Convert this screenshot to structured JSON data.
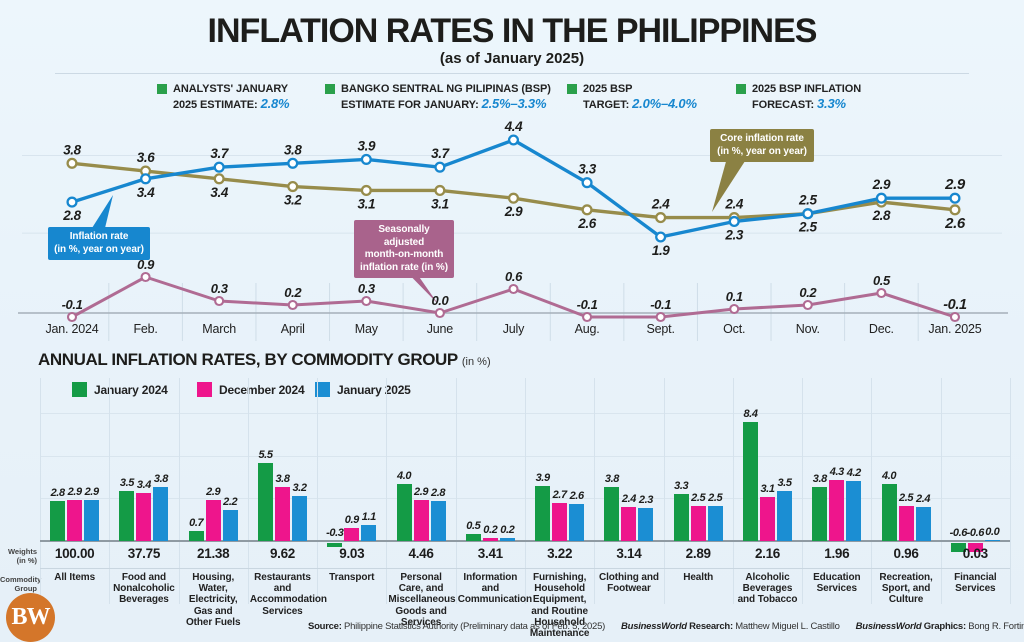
{
  "header": {
    "title": "INFLATION RATES IN THE PHILIPPINES",
    "subtitle": "(as of January 2025)"
  },
  "colors": {
    "accent_blue": "#1787cf",
    "olive": "#978c4b",
    "mauve": "#b06b93",
    "legend_green": "#2ba04b",
    "bar_green": "#149b46",
    "bar_pink": "#ee158c",
    "bar_blue": "#1b8ed3",
    "logo_orange": "#d4762a"
  },
  "estimates": [
    {
      "line1": "ANALYSTS' JANUARY",
      "line2": "2025 ESTIMATE:",
      "value": "2.8%"
    },
    {
      "line1": "BANGKO SENTRAL NG PILIPINAS (BSP)",
      "line2": "ESTIMATE FOR JANUARY:",
      "value": "2.5%–3.3%"
    },
    {
      "line1": "2025 BSP",
      "line2": "TARGET:",
      "value": "2.0%–4.0%"
    },
    {
      "line1": "2025 BSP INFLATION",
      "line2": "FORECAST:",
      "value": "3.3%"
    }
  ],
  "callouts": [
    {
      "lines": [
        "Inflation rate",
        "(in %, year on year)"
      ],
      "color": "#1787cf"
    },
    {
      "lines": [
        "Seasonally adjusted",
        "month-on-month",
        "inflation rate (in %)"
      ],
      "color": "#a9638c"
    },
    {
      "lines": [
        "Core inflation rate",
        "(in %, year on year)"
      ],
      "color": "#8b8143"
    }
  ],
  "chart_data": [
    {
      "type": "line",
      "categories": [
        "Jan. 2024",
        "Feb.",
        "March",
        "April",
        "May",
        "June",
        "July",
        "Aug.",
        "Sept.",
        "Oct.",
        "Nov.",
        "Dec.",
        "Jan. 2025"
      ],
      "ylim": [
        1.5,
        4.8
      ],
      "grid_values": [
        2.0,
        4.0
      ],
      "series": [
        {
          "name": "Inflation rate (in %, year on year)",
          "color": "#1787cf",
          "values": [
            2.8,
            3.4,
            3.7,
            3.8,
            3.9,
            3.7,
            4.4,
            3.3,
            1.9,
            2.3,
            2.5,
            2.9,
            2.9
          ],
          "label_pos": [
            "below",
            "below",
            "above",
            "above",
            "above",
            "above",
            "above",
            "above",
            "below",
            "below",
            "below",
            "above",
            "above"
          ]
        },
        {
          "name": "Core inflation rate (in %, year on year)",
          "color": "#978c4b",
          "values": [
            3.8,
            3.6,
            3.4,
            3.2,
            3.1,
            3.1,
            2.9,
            2.6,
            2.4,
            2.4,
            2.5,
            2.8,
            2.6
          ],
          "label_pos": [
            "above",
            "above",
            "below",
            "below",
            "below",
            "below",
            "below",
            "below",
            "above",
            "above",
            "above",
            "below",
            "below"
          ]
        }
      ]
    },
    {
      "type": "line",
      "categories": [
        "Jan. 2024",
        "Feb.",
        "March",
        "April",
        "May",
        "June",
        "July",
        "Aug.",
        "Sept.",
        "Oct.",
        "Nov.",
        "Dec.",
        "Jan. 2025"
      ],
      "ylim": [
        -0.4,
        1.1
      ],
      "zero_line": true,
      "series": [
        {
          "name": "Seasonally adjusted month-on-month inflation rate (in %)",
          "color": "#b06b93",
          "values": [
            -0.1,
            0.9,
            0.3,
            0.2,
            0.3,
            0.0,
            0.6,
            -0.1,
            -0.1,
            0.1,
            0.2,
            0.5,
            -0.1
          ]
        }
      ]
    },
    {
      "type": "bar",
      "title": "ANNUAL INFLATION RATES, BY COMMODITY GROUP",
      "title_suffix": "(in %)",
      "grid_values": [
        3,
        6,
        9
      ],
      "series": [
        {
          "name": "January 2024",
          "color": "#149b46"
        },
        {
          "name": "December 2024",
          "color": "#ee158c"
        },
        {
          "name": "January 2025",
          "color": "#1b8ed3"
        }
      ],
      "groups": [
        {
          "name": "All Items",
          "weight": "100.00",
          "values": [
            2.8,
            2.9,
            2.9
          ]
        },
        {
          "name": "Food and Nonalcoholic Beverages",
          "weight": "37.75",
          "values": [
            3.5,
            3.4,
            3.8
          ]
        },
        {
          "name": "Housing, Water, Electricity, Gas and Other Fuels",
          "weight": "21.38",
          "values": [
            0.7,
            2.9,
            2.2
          ]
        },
        {
          "name": "Restaurants and Accommodation Services",
          "weight": "9.62",
          "values": [
            5.5,
            3.8,
            3.2
          ]
        },
        {
          "name": "Transport",
          "weight": "9.03",
          "values": [
            -0.3,
            0.9,
            1.1
          ]
        },
        {
          "name": "Personal Care, and Miscellaneous Goods and Services",
          "weight": "4.46",
          "values": [
            4.0,
            2.9,
            2.8
          ]
        },
        {
          "name": "Information and Communication",
          "weight": "3.41",
          "values": [
            0.5,
            0.2,
            0.2
          ]
        },
        {
          "name": "Furnishing, Household Equipment, and Routine Household Maintenance",
          "weight": "3.22",
          "values": [
            3.9,
            2.7,
            2.6
          ]
        },
        {
          "name": "Clothing and Footwear",
          "weight": "3.14",
          "values": [
            3.8,
            2.4,
            2.3
          ]
        },
        {
          "name": "Health",
          "weight": "2.89",
          "values": [
            3.3,
            2.5,
            2.5
          ]
        },
        {
          "name": "Alcoholic Beverages and Tobacco",
          "weight": "2.16",
          "values": [
            8.4,
            3.1,
            3.5
          ]
        },
        {
          "name": "Education Services",
          "weight": "1.96",
          "values": [
            3.8,
            4.3,
            4.2
          ]
        },
        {
          "name": "Recreation, Sport, and Culture",
          "weight": "0.96",
          "values": [
            4.0,
            2.5,
            2.4
          ]
        },
        {
          "name": "Financial Services",
          "weight": "0.03",
          "values": [
            -0.6,
            -0.6,
            0.0
          ]
        }
      ]
    }
  ],
  "side_labels": {
    "weights1": "Weights",
    "weights2": "(in %)",
    "commodity1": "Commodity",
    "commodity2": "Group"
  },
  "footer": {
    "source_label": "Source:",
    "source_text": " Philippine Statistics Authority (Preliminary data as of Feb. 5, 2025)",
    "research_brand": "BusinessWorld",
    "research_label": " Research:",
    "research_text": " Matthew Miguel L. Castillo",
    "graphics_brand": "BusinessWorld",
    "graphics_label": " Graphics:",
    "graphics_text": " Bong R. Fortin"
  },
  "logo": {
    "text": "BW"
  }
}
